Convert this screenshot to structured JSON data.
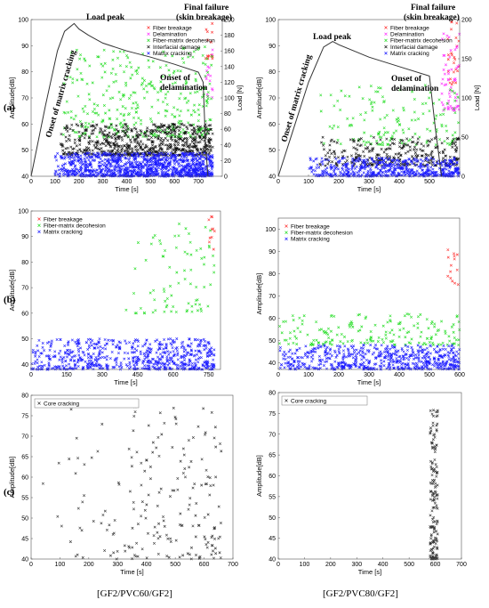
{
  "row_labels": [
    "(a)",
    "(b)",
    "(c)"
  ],
  "captions": [
    "[GF2/PVC60/GF2]",
    "[GF2/PVC80/GF2]"
  ],
  "annotations": {
    "load_peak": "Load peak",
    "final_failure_1": "Final failure",
    "final_failure_2": "(skin breakage)",
    "onset_delam_1": "Onset of",
    "onset_delam_2": "delamination",
    "onset_matrix": "Onset of matrix cracking"
  },
  "colors": {
    "fiber_breakage": "#ff3030",
    "delamination": "#ff30ff",
    "fiber_matrix_decohesion": "#22dd22",
    "interfacial_damage": "#111111",
    "matrix_cracking": "#1a1aff",
    "core_cracking": "#333333",
    "load_curve": "#333333"
  },
  "chart_data": [
    {
      "id": "a-left",
      "type": "scatter",
      "xlabel": "Time [s]",
      "ylabel": "Amplitude[dB]",
      "y2label": "Load [N]",
      "xlim": [
        0,
        800
      ],
      "ylim": [
        40,
        100
      ],
      "y2lim": [
        0,
        200
      ],
      "xticks": [
        0,
        100,
        200,
        300,
        400,
        500,
        600,
        700
      ],
      "yticks": [
        40,
        50,
        60,
        70,
        80,
        90,
        100
      ],
      "y2ticks": [
        0,
        20,
        40,
        60,
        80,
        100,
        120,
        140,
        160,
        180,
        200
      ],
      "legend": [
        "Fiber breakage",
        "Delamination",
        "Fiber-matrix decohesion",
        "Interfacial damage",
        "Matrix cracking"
      ],
      "legend_position": "top-right",
      "load_curve": {
        "x": [
          0,
          60,
          110,
          140,
          160,
          180,
          200,
          240,
          300,
          400,
          500,
          600,
          700,
          720,
          730,
          740
        ],
        "y": [
          0,
          90,
          160,
          185,
          190,
          195,
          188,
          180,
          170,
          160,
          152,
          143,
          133,
          120,
          40,
          0
        ]
      },
      "series": [
        {
          "name": "Fiber breakage",
          "x_range": [
            730,
            760
          ],
          "y_range": [
            85,
            100
          ],
          "count": 15
        },
        {
          "name": "Delamination",
          "x_range": [
            730,
            760
          ],
          "y_range": [
            70,
            90
          ],
          "count": 15
        },
        {
          "name": "Fiber-matrix decohesion",
          "x_range": [
            130,
            760
          ],
          "y_range": [
            55,
            90
          ],
          "count": 360
        },
        {
          "name": "Interfacial damage",
          "x_range": [
            120,
            760
          ],
          "y_range": [
            48,
            60
          ],
          "count": 700
        },
        {
          "name": "Matrix cracking",
          "x_range": [
            100,
            760
          ],
          "y_range": [
            40,
            49
          ],
          "count": 1100
        }
      ]
    },
    {
      "id": "a-right",
      "type": "scatter",
      "xlabel": "Time [s]",
      "ylabel": "Amplitude[dB]",
      "y2label": "Load [N]",
      "xlim": [
        0,
        600
      ],
      "ylim": [
        40,
        100
      ],
      "y2lim": [
        0,
        200
      ],
      "xticks": [
        0,
        100,
        200,
        300,
        400,
        500
      ],
      "yticks": [
        40,
        50,
        60,
        70,
        80,
        90,
        100
      ],
      "y2ticks": [
        0,
        50,
        100,
        150,
        200
      ],
      "legend": [
        "Fiber breakage",
        "Delamination",
        "Fiber-matrix decohesion",
        "Interfacial damage",
        "Matrix cracking"
      ],
      "legend_position": "top-right",
      "load_curve": {
        "x": [
          0,
          50,
          100,
          150,
          180,
          200,
          250,
          300,
          400,
          500,
          520,
          540
        ],
        "y": [
          0,
          60,
          120,
          165,
          172,
          168,
          160,
          152,
          140,
          128,
          60,
          0
        ]
      },
      "series": [
        {
          "name": "Fiber breakage",
          "x_range": [
            560,
            600
          ],
          "y_range": [
            75,
            100
          ],
          "count": 25
        },
        {
          "name": "Delamination",
          "x_range": [
            540,
            600
          ],
          "y_range": [
            65,
            95
          ],
          "count": 60
        },
        {
          "name": "Fiber-matrix decohesion",
          "x_range": [
            130,
            600
          ],
          "y_range": [
            52,
            75
          ],
          "count": 150
        },
        {
          "name": "Interfacial damage",
          "x_range": [
            130,
            600
          ],
          "y_range": [
            44,
            55
          ],
          "count": 300
        },
        {
          "name": "Matrix cracking",
          "x_range": [
            100,
            600
          ],
          "y_range": [
            40,
            47
          ],
          "count": 550
        }
      ]
    },
    {
      "id": "b-left",
      "type": "scatter",
      "xlabel": "Time [s]",
      "ylabel": "Amplitude[dB]",
      "xlim": [
        0,
        800
      ],
      "ylim": [
        38,
        100
      ],
      "xticks": [
        0,
        150,
        300,
        450,
        600,
        750
      ],
      "yticks": [
        40,
        50,
        60,
        70,
        80,
        90,
        100
      ],
      "legend": [
        "Fiber breakage",
        "Fiber-matrix decohesion",
        "Matrix cracking"
      ],
      "legend_position": "top-left",
      "series": [
        {
          "name": "Fiber breakage",
          "x_range": [
            750,
            775
          ],
          "y_range": [
            85,
            100
          ],
          "count": 10
        },
        {
          "name": "Fiber-matrix decohesion",
          "x_range": [
            400,
            775
          ],
          "y_range": [
            60,
            95
          ],
          "count": 80
        },
        {
          "name": "Matrix cracking",
          "x_range": [
            0,
            775
          ],
          "y_range": [
            38,
            50
          ],
          "count": 650
        }
      ]
    },
    {
      "id": "b-right",
      "type": "scatter",
      "xlabel": "Time [s]",
      "ylabel": "Amplitude[dB]",
      "xlim": [
        0,
        600
      ],
      "ylim": [
        37,
        105
      ],
      "xticks": [
        0,
        100,
        200,
        300,
        400,
        500,
        600
      ],
      "yticks": [
        40,
        50,
        60,
        70,
        80,
        90,
        100
      ],
      "legend": [
        "Fiber breakage",
        "Fiber-matrix decohesion",
        "Matrix cracking"
      ],
      "legend_position": "top-left",
      "series": [
        {
          "name": "Fiber breakage",
          "x_range": [
            560,
            600
          ],
          "y_range": [
            75,
            100
          ],
          "count": 14
        },
        {
          "name": "Fiber-matrix decohesion",
          "x_range": [
            0,
            600
          ],
          "y_range": [
            48,
            62
          ],
          "count": 180
        },
        {
          "name": "Matrix cracking",
          "x_range": [
            0,
            600
          ],
          "y_range": [
            37,
            48
          ],
          "count": 600
        }
      ]
    },
    {
      "id": "c-left",
      "type": "scatter",
      "xlabel": "Time [s]",
      "ylabel": "Amplitude[dB]",
      "xlim": [
        0,
        700
      ],
      "ylim": [
        40,
        80
      ],
      "xticks": [
        0,
        100,
        200,
        300,
        400,
        500,
        600,
        700
      ],
      "yticks": [
        40,
        45,
        50,
        55,
        60,
        65,
        70,
        75,
        80
      ],
      "legend": [
        "Core cracking"
      ],
      "legend_position": "top-left",
      "series": [
        {
          "name": "Core cracking",
          "x_range": [
            20,
            660
          ],
          "y_range": [
            40,
            78
          ],
          "count": 200
        }
      ]
    },
    {
      "id": "c-right",
      "type": "scatter",
      "xlabel": "Time [s]",
      "ylabel": "Amplitude[dB]",
      "xlim": [
        0,
        700
      ],
      "ylim": [
        40,
        80
      ],
      "xticks": [
        0,
        100,
        200,
        300,
        400,
        500,
        600,
        700
      ],
      "yticks": [
        40,
        45,
        50,
        55,
        60,
        65,
        70,
        75,
        80
      ],
      "legend": [
        "Core cracking"
      ],
      "legend_position": "top-left",
      "series": [
        {
          "name": "Core cracking",
          "x_range": [
            580,
            610
          ],
          "y_range": [
            40,
            76
          ],
          "count": 160
        }
      ]
    }
  ]
}
